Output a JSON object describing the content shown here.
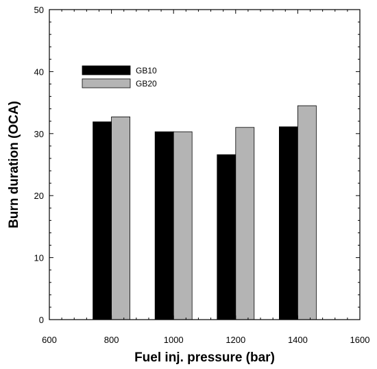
{
  "chart_data": {
    "type": "bar",
    "title": "",
    "xlabel": "Fuel inj. pressure (bar)",
    "ylabel": "Burn duration (OCA)",
    "xlim": [
      600,
      1600
    ],
    "ylim": [
      0,
      50
    ],
    "xticks": [
      600,
      800,
      1000,
      1200,
      1400,
      1600
    ],
    "yticks": [
      0,
      10,
      20,
      30,
      40,
      50
    ],
    "x": [
      800,
      1000,
      1200,
      1400
    ],
    "series": [
      {
        "name": "GB10",
        "color": "#000000",
        "values": [
          31.9,
          30.3,
          26.6,
          31.1
        ]
      },
      {
        "name": "GB20",
        "color": "#b4b4b4",
        "values": [
          32.7,
          30.3,
          31.0,
          34.5
        ]
      }
    ],
    "grid": false,
    "legend_position": "top-left"
  }
}
